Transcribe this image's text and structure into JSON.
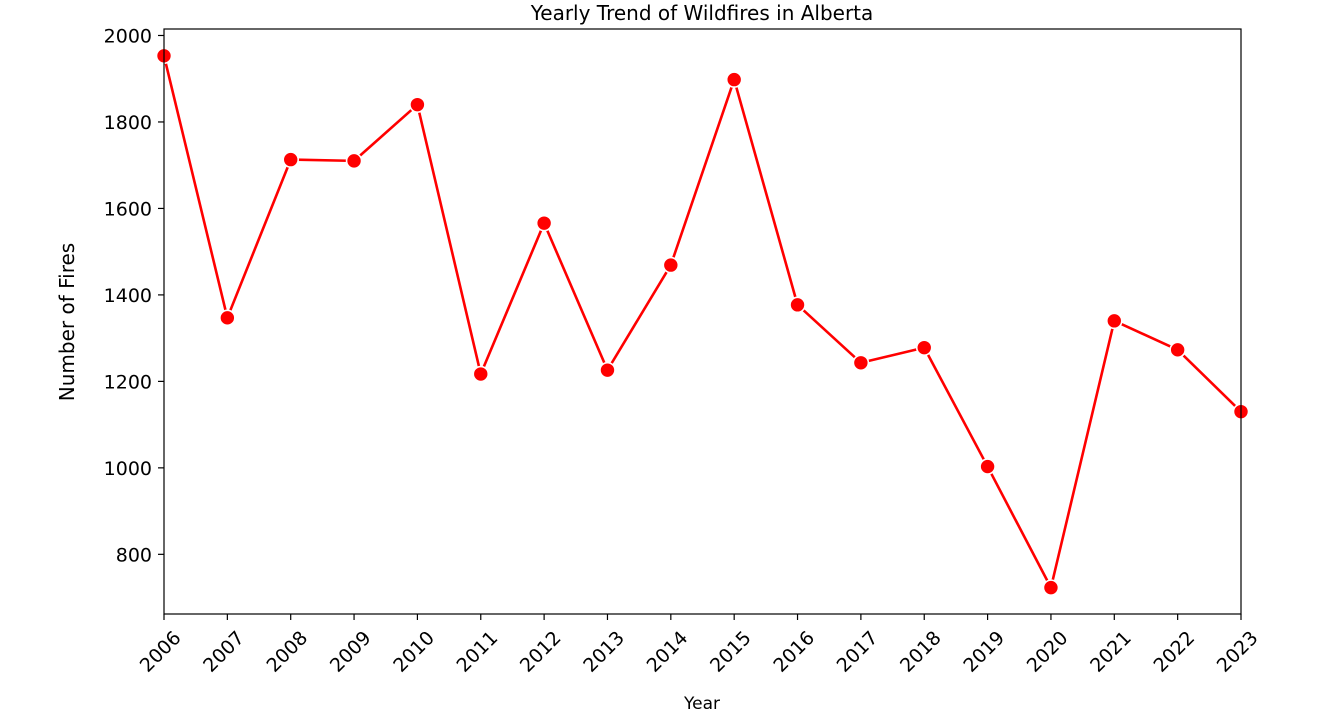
{
  "chart_data": {
    "type": "line",
    "title": "Yearly Trend of Wildfires in Alberta",
    "xlabel": "Year",
    "ylabel": "Number of Fires",
    "x": [
      "2006",
      "2007",
      "2008",
      "2009",
      "2010",
      "2011",
      "2012",
      "2013",
      "2014",
      "2015",
      "2016",
      "2017",
      "2018",
      "2019",
      "2020",
      "2021",
      "2022",
      "2023"
    ],
    "series": [
      {
        "values": [
          1953,
          1347,
          1713,
          1710,
          1840,
          1217,
          1566,
          1226,
          1469,
          1898,
          1377,
          1243,
          1278,
          1003,
          723,
          1340,
          1273,
          1130
        ]
      }
    ],
    "yticks": [
      800,
      1000,
      1200,
      1400,
      1600,
      1800,
      2000
    ],
    "ylim": [
      662,
      2015
    ],
    "grid": false,
    "legend": "none",
    "line_color": "#ff0000",
    "marker_color": "#ff0000",
    "marker_edge_color": "#ffffff"
  }
}
